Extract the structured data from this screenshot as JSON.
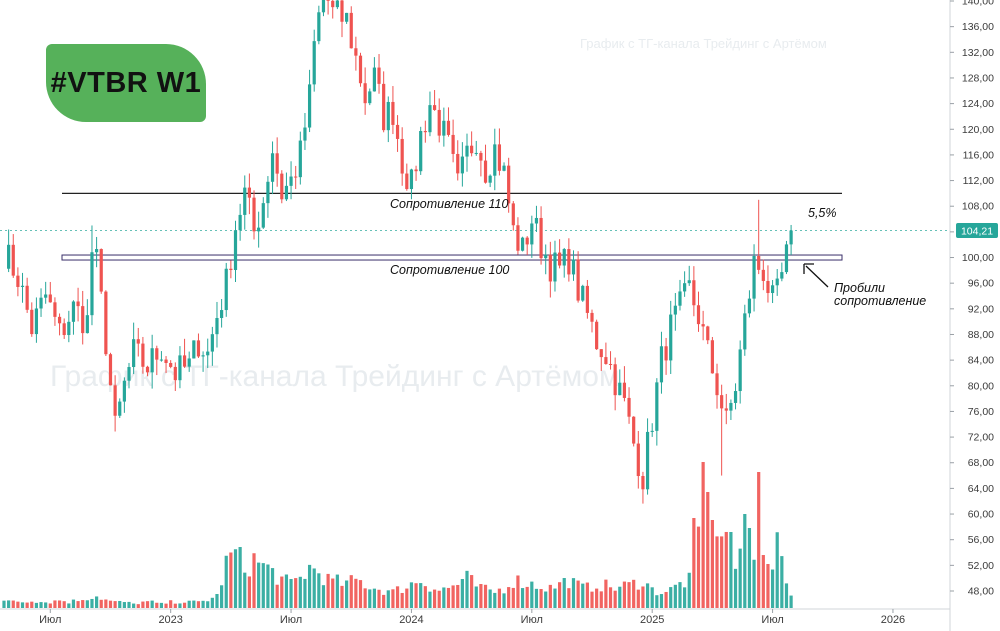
{
  "badge": {
    "label": "#VTBR W1"
  },
  "watermark": {
    "top": "График с ТГ-канала Трейдинг с Артёмом",
    "center": "График с ТГ-канала Трейдинг с Артёмом"
  },
  "annotations": {
    "resistance_110": "Сопротивление 110",
    "resistance_100": "Сопротивление 100",
    "percent": "5,5%",
    "breakout_line1": "Пробили",
    "breakout_line2": "сопротивление"
  },
  "colors": {
    "up": "#26a69a",
    "down": "#ef5350",
    "badge": "#56b15a",
    "price_tag": "#26a69a"
  },
  "chart_data": {
    "type": "candlestick",
    "title": "#VTBR W1",
    "y_axis": {
      "min": 44,
      "max": 141,
      "ticks": [
        48,
        52,
        56,
        60,
        64,
        68,
        72,
        76,
        80,
        84,
        88,
        92,
        96,
        100,
        104,
        108,
        112,
        116,
        120,
        124,
        128,
        132,
        136,
        140
      ],
      "tick_labels": [
        "48,00",
        "52,00",
        "56,00",
        "60,00",
        "64,00",
        "68,00",
        "72,00",
        "76,00",
        "80,00",
        "84,00",
        "88,00",
        "92,00",
        "96,00",
        "100,00",
        "104,00",
        "108,00",
        "112,00",
        "116,00",
        "120,00",
        "124,00",
        "128,00",
        "132,00",
        "136,00",
        "140,00"
      ]
    },
    "x_axis": {
      "labels": [
        "Июл",
        "2023",
        "Июл",
        "2024",
        "Июл",
        "2025",
        "Июл",
        "2026"
      ],
      "label_weeks": [
        10,
        36,
        62,
        88,
        114,
        140,
        166,
        192
      ]
    },
    "last_price": 104.21,
    "last_price_label": "104,21",
    "levels": [
      {
        "value": 110,
        "label": "Сопротивление 110"
      },
      {
        "value": 100,
        "label": "Сопротивление 100"
      }
    ],
    "anchors": [
      [
        0,
        101
      ],
      [
        3,
        97
      ],
      [
        6,
        89
      ],
      [
        9,
        94
      ],
      [
        12,
        88
      ],
      [
        15,
        92
      ],
      [
        18,
        90
      ],
      [
        19,
        101
      ],
      [
        20,
        99
      ],
      [
        22,
        87
      ],
      [
        24,
        73
      ],
      [
        26,
        80
      ],
      [
        28,
        85
      ],
      [
        31,
        83
      ],
      [
        34,
        86
      ],
      [
        37,
        82
      ],
      [
        40,
        83
      ],
      [
        42,
        87
      ],
      [
        44,
        85
      ],
      [
        46,
        91
      ],
      [
        48,
        96
      ],
      [
        50,
        105
      ],
      [
        52,
        110
      ],
      [
        54,
        104
      ],
      [
        56,
        109
      ],
      [
        58,
        117
      ],
      [
        60,
        110
      ],
      [
        62,
        112
      ],
      [
        64,
        116
      ],
      [
        66,
        125
      ],
      [
        67,
        133
      ],
      [
        69,
        142
      ],
      [
        71,
        138
      ],
      [
        74,
        137
      ],
      [
        76,
        131
      ],
      [
        78,
        125
      ],
      [
        80,
        128
      ],
      [
        82,
        122
      ],
      [
        84,
        123
      ],
      [
        86,
        115
      ],
      [
        88,
        111
      ],
      [
        90,
        119
      ],
      [
        92,
        124
      ],
      [
        94,
        121
      ],
      [
        96,
        117
      ],
      [
        98,
        111
      ],
      [
        100,
        116
      ],
      [
        102,
        119
      ],
      [
        104,
        114
      ],
      [
        106,
        117
      ],
      [
        108,
        113
      ],
      [
        110,
        104
      ],
      [
        112,
        101
      ],
      [
        114,
        106
      ],
      [
        116,
        102
      ],
      [
        118,
        99
      ],
      [
        120,
        98
      ],
      [
        122,
        100
      ],
      [
        124,
        95
      ],
      [
        126,
        91
      ],
      [
        128,
        87
      ],
      [
        130,
        85
      ],
      [
        132,
        81
      ],
      [
        134,
        77
      ],
      [
        136,
        71
      ],
      [
        138,
        66
      ],
      [
        140,
        75
      ],
      [
        142,
        84
      ],
      [
        144,
        89
      ],
      [
        146,
        92
      ],
      [
        148,
        95
      ],
      [
        150,
        91
      ],
      [
        152,
        85
      ],
      [
        154,
        80
      ],
      [
        156,
        74
      ],
      [
        158,
        80
      ],
      [
        160,
        90
      ],
      [
        162,
        99
      ],
      [
        164,
        98
      ],
      [
        166,
        93
      ],
      [
        167,
        94
      ],
      [
        168,
        97
      ],
      [
        169,
        100
      ],
      [
        170,
        104.21
      ]
    ],
    "volume": {
      "series": [
        [
          0,
          3
        ],
        [
          2,
          4
        ],
        [
          4,
          3
        ],
        [
          6,
          4
        ],
        [
          8,
          3
        ],
        [
          10,
          3
        ],
        [
          12,
          4
        ],
        [
          14,
          3
        ],
        [
          16,
          4
        ],
        [
          18,
          5
        ],
        [
          20,
          6
        ],
        [
          22,
          4
        ],
        [
          24,
          3
        ],
        [
          26,
          3
        ],
        [
          28,
          2
        ],
        [
          30,
          3
        ],
        [
          32,
          3
        ],
        [
          34,
          2
        ],
        [
          36,
          3
        ],
        [
          38,
          3
        ],
        [
          40,
          3
        ],
        [
          42,
          3
        ],
        [
          44,
          4
        ],
        [
          46,
          6
        ],
        [
          48,
          22
        ],
        [
          50,
          28
        ],
        [
          52,
          20
        ],
        [
          54,
          24
        ],
        [
          56,
          21
        ],
        [
          58,
          18
        ],
        [
          60,
          14
        ],
        [
          62,
          12
        ],
        [
          64,
          15
        ],
        [
          66,
          20
        ],
        [
          68,
          18
        ],
        [
          70,
          14
        ],
        [
          72,
          13
        ],
        [
          74,
          12
        ],
        [
          76,
          14
        ],
        [
          78,
          12
        ],
        [
          80,
          10
        ],
        [
          82,
          9
        ],
        [
          84,
          8
        ],
        [
          86,
          10
        ],
        [
          88,
          12
        ],
        [
          90,
          14
        ],
        [
          92,
          11
        ],
        [
          94,
          9
        ],
        [
          96,
          10
        ],
        [
          98,
          12
        ],
        [
          100,
          15
        ],
        [
          102,
          11
        ],
        [
          104,
          9
        ],
        [
          106,
          8
        ],
        [
          108,
          10
        ],
        [
          110,
          14
        ],
        [
          112,
          13
        ],
        [
          114,
          12
        ],
        [
          116,
          11
        ],
        [
          118,
          10
        ],
        [
          120,
          12
        ],
        [
          122,
          14
        ],
        [
          124,
          11
        ],
        [
          126,
          10
        ],
        [
          128,
          12
        ],
        [
          130,
          11
        ],
        [
          132,
          10
        ],
        [
          134,
          11
        ],
        [
          136,
          12
        ],
        [
          138,
          14
        ],
        [
          140,
          9
        ],
        [
          142,
          8
        ],
        [
          144,
          9
        ],
        [
          146,
          12
        ],
        [
          148,
          14
        ],
        [
          150,
          38
        ],
        [
          152,
          72
        ],
        [
          154,
          45
        ],
        [
          156,
          34
        ],
        [
          158,
          20
        ],
        [
          160,
          26
        ],
        [
          162,
          22
        ],
        [
          163,
          40
        ],
        [
          164,
          33
        ],
        [
          165,
          30
        ],
        [
          166,
          16
        ],
        [
          167,
          42
        ],
        [
          168,
          20
        ],
        [
          169,
          12
        ],
        [
          170,
          8
        ]
      ],
      "spikes": [
        [
          149,
          45
        ],
        [
          151,
          73
        ],
        [
          152,
          58
        ],
        [
          153,
          44
        ],
        [
          157,
          38
        ],
        [
          160,
          47
        ],
        [
          161,
          40
        ],
        [
          163,
          68
        ],
        [
          165,
          22
        ]
      ]
    }
  }
}
